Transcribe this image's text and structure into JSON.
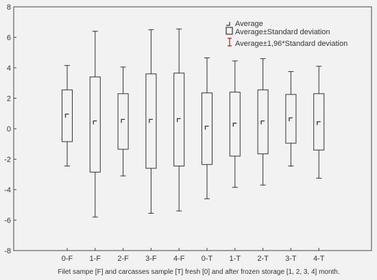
{
  "chart_data": {
    "type": "box",
    "categories": [
      "0-F",
      "1-F",
      "2-F",
      "3-F",
      "4-F",
      "0-T",
      "1-T",
      "2-T",
      "3-T",
      "4-T"
    ],
    "series": [
      {
        "mean": [
          0.85,
          0.4,
          0.5,
          0.5,
          0.55,
          0.05,
          0.25,
          0.4,
          0.6,
          0.35
        ],
        "sd_low": [
          -0.85,
          -2.85,
          -1.35,
          -2.6,
          -2.45,
          -2.35,
          -1.8,
          -1.65,
          -0.95,
          -1.4
        ],
        "sd_high": [
          2.55,
          3.4,
          2.3,
          3.6,
          3.65,
          2.35,
          2.4,
          2.55,
          2.25,
          2.3
        ],
        "ci_low": [
          -2.45,
          -5.8,
          -3.1,
          -5.55,
          -5.4,
          -4.6,
          -3.85,
          -3.7,
          -2.45,
          -3.25
        ],
        "ci_high": [
          4.15,
          6.4,
          4.05,
          6.5,
          6.55,
          4.65,
          4.45,
          4.6,
          3.75,
          4.1
        ]
      }
    ],
    "xlabel": "Filet sampe [F] and carcasses sample [T] fresh [0] and after frozen storage [1, 2, 3, 4] month.",
    "ylabel": "",
    "ylim": [
      -8,
      8
    ],
    "yticks": [
      -8,
      -6,
      -4,
      -2,
      0,
      2,
      4,
      6,
      8
    ],
    "grid": false,
    "legend_position": "top-right",
    "legend": [
      "Average",
      "Average±Standard deviation",
      "Average±1,96*Standard deviation"
    ],
    "colors": {
      "box": "#333333",
      "whisker": "#333333",
      "ci_legend": "#c0392b",
      "background": "#f2f2f2"
    }
  }
}
